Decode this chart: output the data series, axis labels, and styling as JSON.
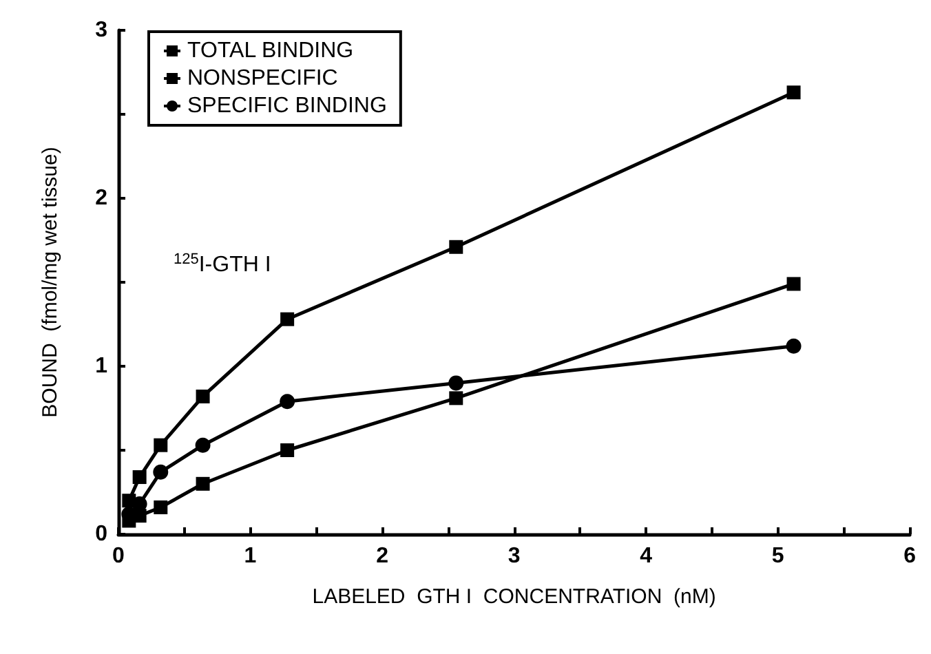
{
  "chart_data": {
    "type": "line",
    "xlabel": "LABELED  GTH I  CONCENTRATION  (nM)",
    "ylabel": "BOUND  (fmol/mg wet tissue)",
    "x": [
      0.08,
      0.16,
      0.32,
      0.64,
      1.28,
      2.56,
      5.12
    ],
    "series": [
      {
        "name": "TOTAL BINDING",
        "color": "#000000",
        "marker": "square",
        "values": [
          0.2,
          0.34,
          0.53,
          0.82,
          1.28,
          1.71,
          2.63
        ]
      },
      {
        "name": "NONSPECIFIC",
        "color": "#000000",
        "marker": "square",
        "values": [
          0.08,
          0.11,
          0.16,
          0.3,
          0.5,
          0.81,
          1.49
        ]
      },
      {
        "name": "SPECIFIC BINDING",
        "color": "#000000",
        "marker": "circle",
        "values": [
          0.12,
          0.18,
          0.37,
          0.53,
          0.79,
          0.9,
          1.12
        ]
      }
    ],
    "xlim": [
      0,
      6
    ],
    "xticks": [
      0,
      {
        "value": 0.5,
        "label": null
      },
      1,
      {
        "value": 1.5,
        "label": null
      },
      2,
      {
        "value": 2.5,
        "label": null
      },
      3,
      {
        "value": 3.5,
        "label": null
      },
      4,
      {
        "value": 4.5,
        "label": null
      },
      5,
      {
        "value": 5.5,
        "label": null
      },
      6
    ],
    "ylim": [
      0,
      3
    ],
    "yticks": [
      0,
      {
        "value": 0.5,
        "label": null
      },
      1,
      {
        "value": 1.5,
        "label": null
      },
      2,
      {
        "value": 2.5,
        "label": null
      },
      3
    ],
    "annotations": [
      "$^{125}$I-GTH I"
    ],
    "legend": "top left",
    "grid": false,
    "line_style": "solid"
  }
}
